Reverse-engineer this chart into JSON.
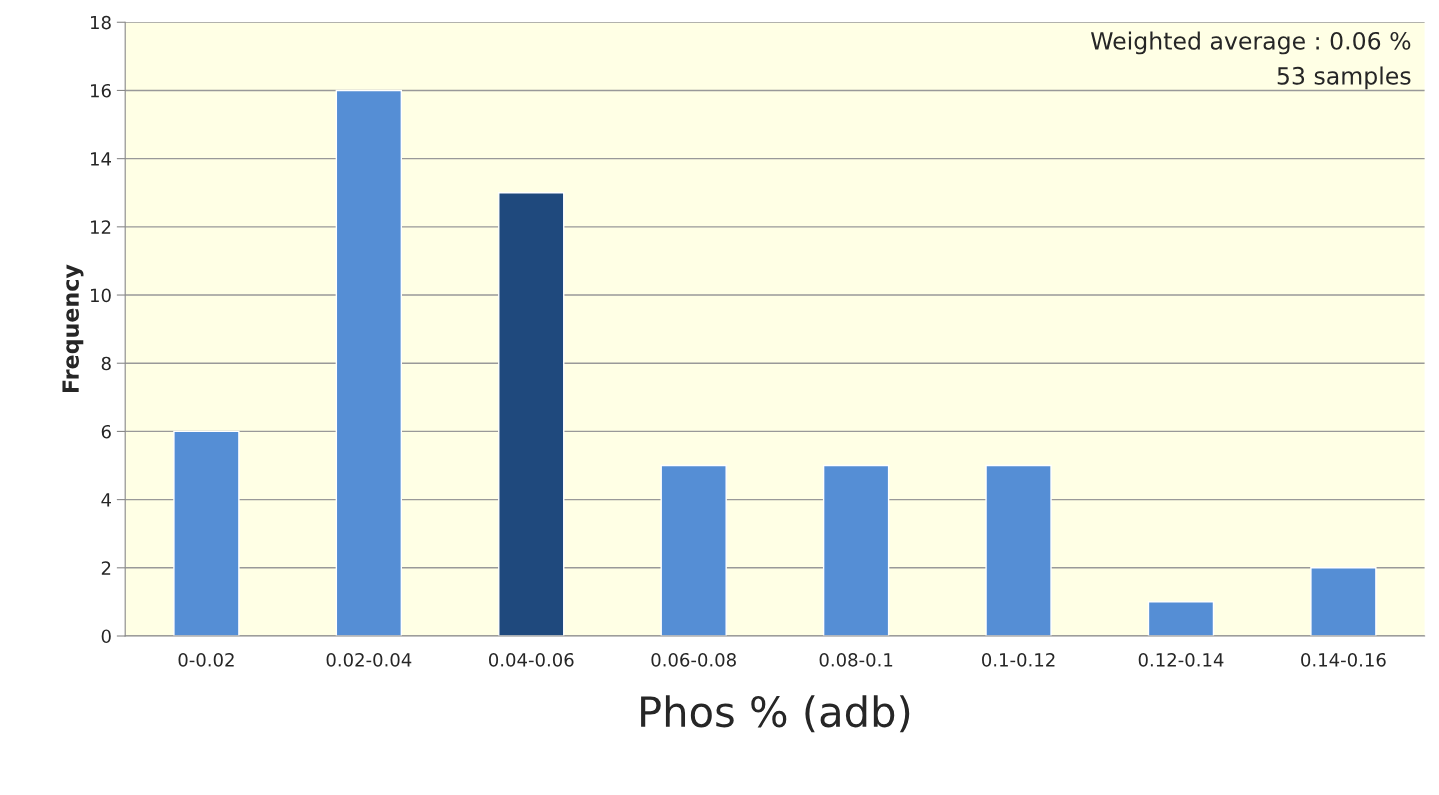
{
  "chart_data": {
    "type": "bar",
    "xlabel": "Phos % (adb)",
    "ylabel": "Frequency",
    "categories": [
      "0-0.02",
      "0.02-0.04",
      "0.04-0.06",
      "0.06-0.08",
      "0.08-0.1",
      "0.1-0.12",
      "0.12-0.14",
      "0.14-0.16"
    ],
    "values": [
      6,
      16,
      13,
      5,
      5,
      5,
      1,
      2
    ],
    "colors": [
      "#558ed5",
      "#558ed5",
      "#1f497d",
      "#558ed5",
      "#558ed5",
      "#558ed5",
      "#558ed5",
      "#558ed5"
    ],
    "ylim": [
      0,
      18
    ],
    "yticks": [
      0,
      2,
      4,
      6,
      8,
      10,
      12,
      14,
      16,
      18
    ],
    "grid": "y",
    "legend": false,
    "annotations": [
      "Weighted average : 0.06 %",
      "53 samples"
    ]
  }
}
